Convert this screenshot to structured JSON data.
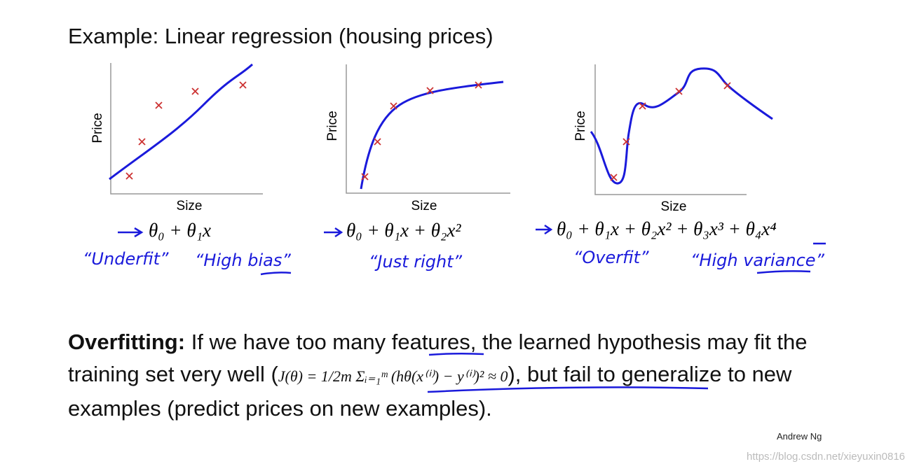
{
  "title": "Example: Linear regression (housing prices)",
  "panels": [
    {
      "y_label": "Price",
      "x_label": "Size",
      "hypothesis": "θ₀ + θ₁x",
      "notes": [
        "“Underfit”",
        "“High bias”"
      ]
    },
    {
      "y_label": "Price",
      "x_label": "Size",
      "hypothesis": "θ₀ + θ₁x + θ₂x²",
      "notes": [
        "“Just right”"
      ]
    },
    {
      "y_label": "Price",
      "x_label": "Size",
      "hypothesis": "θ₀ + θ₁x + θ₂x² + θ₃x³ + θ₄x⁴",
      "notes": [
        "“Overfit”",
        "“High variance”"
      ]
    }
  ],
  "overfitting": {
    "term": "Overfitting:",
    "text_before": "If we have too many features, the learned hypothesis may fit the training set very well (",
    "formula": "J(θ) = 1/2m Σᵢ₌₁ᵐ (hθ(x⁽ⁱ⁾) − y⁽ⁱ⁾)² ≈ 0",
    "text_after": "), but fail to generalize to new examples (predict prices on new examples)."
  },
  "author": "Andrew Ng",
  "watermark": "https://blog.csdn.net/xieyuxin0816"
}
